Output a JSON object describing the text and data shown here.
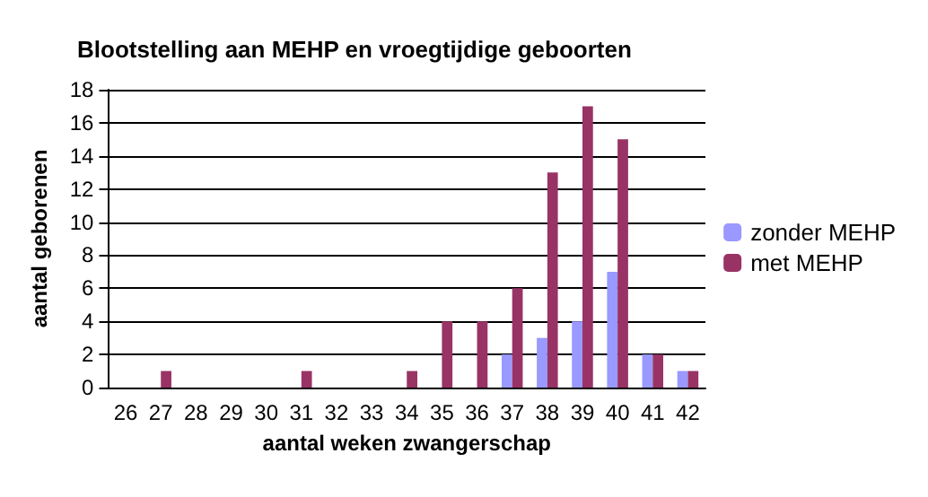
{
  "chart_data": {
    "type": "bar",
    "title": "Blootstelling aan MEHP en vroegtijdige geboorten",
    "xlabel": "aantal weken zwangerschap",
    "ylabel": "aantal geborenen",
    "categories": [
      "26",
      "27",
      "28",
      "29",
      "30",
      "31",
      "32",
      "33",
      "34",
      "35",
      "36",
      "37",
      "38",
      "39",
      "40",
      "41",
      "42"
    ],
    "series": [
      {
        "name": "zonder MEHP",
        "color": "#9999ff",
        "values": [
          0,
          0,
          0,
          0,
          0,
          0,
          0,
          0,
          0,
          0,
          0,
          2,
          3,
          4,
          7,
          2,
          1
        ]
      },
      {
        "name": "met MEHP",
        "color": "#993366",
        "values": [
          0,
          1,
          0,
          0,
          0,
          1,
          0,
          0,
          1,
          4,
          4,
          6,
          13,
          17,
          15,
          2,
          1
        ]
      }
    ],
    "ylim": [
      0,
      18
    ],
    "yticks": [
      0,
      2,
      4,
      6,
      8,
      10,
      12,
      14,
      16,
      18
    ],
    "grid": "y",
    "legend": "right"
  }
}
